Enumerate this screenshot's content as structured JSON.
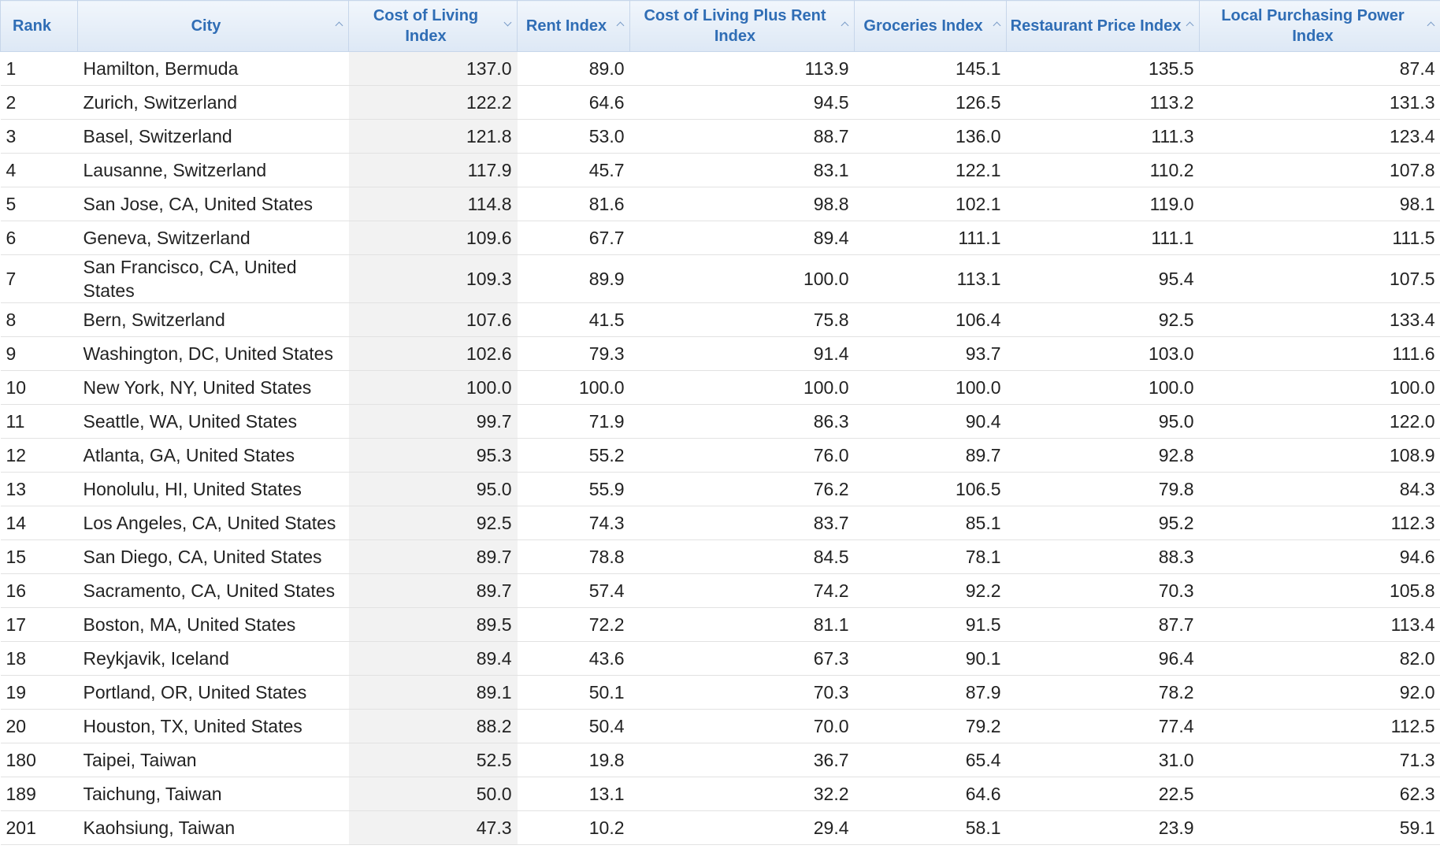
{
  "table": {
    "headers": [
      "Rank",
      "City",
      "Cost of Living Index",
      "Rent Index",
      "Cost of Living Plus Rent Index",
      "Groceries Index",
      "Restaurant Price Index",
      "Local Purchasing Power Index"
    ],
    "rows": [
      [
        "1",
        "Hamilton, Bermuda",
        "137.0",
        "89.0",
        "113.9",
        "145.1",
        "135.5",
        "87.4"
      ],
      [
        "2",
        "Zurich, Switzerland",
        "122.2",
        "64.6",
        "94.5",
        "126.5",
        "113.2",
        "131.3"
      ],
      [
        "3",
        "Basel, Switzerland",
        "121.8",
        "53.0",
        "88.7",
        "136.0",
        "111.3",
        "123.4"
      ],
      [
        "4",
        "Lausanne, Switzerland",
        "117.9",
        "45.7",
        "83.1",
        "122.1",
        "110.2",
        "107.8"
      ],
      [
        "5",
        "San Jose, CA, United States",
        "114.8",
        "81.6",
        "98.8",
        "102.1",
        "119.0",
        "98.1"
      ],
      [
        "6",
        "Geneva, Switzerland",
        "109.6",
        "67.7",
        "89.4",
        "111.1",
        "111.1",
        "111.5"
      ],
      [
        "7",
        "San Francisco, CA, United States",
        "109.3",
        "89.9",
        "100.0",
        "113.1",
        "95.4",
        "107.5"
      ],
      [
        "8",
        "Bern, Switzerland",
        "107.6",
        "41.5",
        "75.8",
        "106.4",
        "92.5",
        "133.4"
      ],
      [
        "9",
        "Washington, DC, United States",
        "102.6",
        "79.3",
        "91.4",
        "93.7",
        "103.0",
        "111.6"
      ],
      [
        "10",
        "New York, NY, United States",
        "100.0",
        "100.0",
        "100.0",
        "100.0",
        "100.0",
        "100.0"
      ],
      [
        "11",
        "Seattle, WA, United States",
        "99.7",
        "71.9",
        "86.3",
        "90.4",
        "95.0",
        "122.0"
      ],
      [
        "12",
        "Atlanta, GA, United States",
        "95.3",
        "55.2",
        "76.0",
        "89.7",
        "92.8",
        "108.9"
      ],
      [
        "13",
        "Honolulu, HI, United States",
        "95.0",
        "55.9",
        "76.2",
        "106.5",
        "79.8",
        "84.3"
      ],
      [
        "14",
        "Los Angeles, CA, United States",
        "92.5",
        "74.3",
        "83.7",
        "85.1",
        "95.2",
        "112.3"
      ],
      [
        "15",
        "San Diego, CA, United States",
        "89.7",
        "78.8",
        "84.5",
        "78.1",
        "88.3",
        "94.6"
      ],
      [
        "16",
        "Sacramento, CA, United States",
        "89.7",
        "57.4",
        "74.2",
        "92.2",
        "70.3",
        "105.8"
      ],
      [
        "17",
        "Boston, MA, United States",
        "89.5",
        "72.2",
        "81.1",
        "91.5",
        "87.7",
        "113.4"
      ],
      [
        "18",
        "Reykjavik, Iceland",
        "89.4",
        "43.6",
        "67.3",
        "90.1",
        "96.4",
        "82.0"
      ],
      [
        "19",
        "Portland, OR, United States",
        "89.1",
        "50.1",
        "70.3",
        "87.9",
        "78.2",
        "92.0"
      ],
      [
        "20",
        "Houston, TX, United States",
        "88.2",
        "50.4",
        "70.0",
        "79.2",
        "77.4",
        "112.5"
      ],
      [
        "180",
        "Taipei, Taiwan",
        "52.5",
        "19.8",
        "36.7",
        "65.4",
        "31.0",
        "71.3"
      ],
      [
        "189",
        "Taichung, Taiwan",
        "50.0",
        "13.1",
        "32.2",
        "64.6",
        "22.5",
        "62.3"
      ],
      [
        "201",
        "Kaohsiung, Taiwan",
        "47.3",
        "10.2",
        "29.4",
        "58.1",
        "23.9",
        "59.1"
      ]
    ]
  }
}
